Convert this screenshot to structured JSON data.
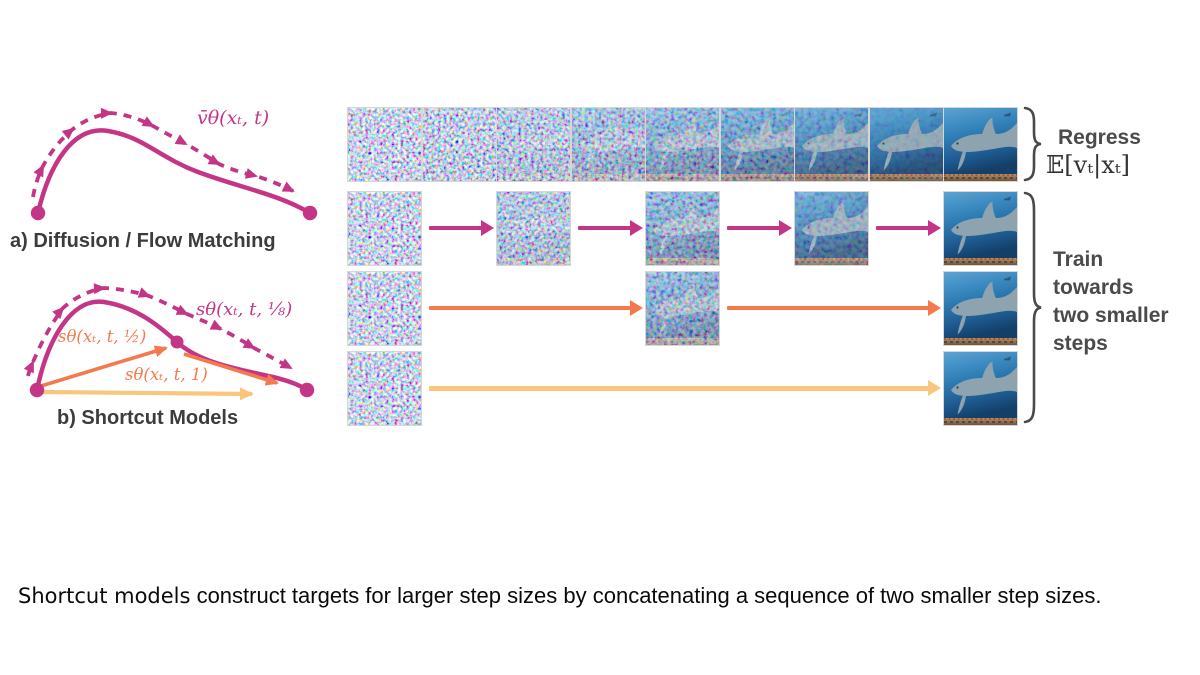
{
  "palette": {
    "magenta": "#C43586",
    "orange": "#F5794E",
    "light_orange": "#FAC57D",
    "annotation_gray": "#4a4a4a"
  },
  "diagrams": {
    "flow_matching": {
      "caption": "a) Diffusion / Flow Matching",
      "curve_label": "v̄θ(xₜ, t)"
    },
    "shortcut": {
      "caption": "b) Shortcut Models",
      "label_eighth": "sθ(xₜ, t, ⅛)",
      "label_half": "sθ(xₜ, t, ½)",
      "label_one": "sθ(xₜ, t, 1)"
    }
  },
  "annotations": {
    "regress_title": "Regress",
    "regress_math": "𝔼[vₜ|xₜ]",
    "train_text": "Train\ntowards\ntwo smaller\nsteps"
  },
  "denoise_rows": [
    {
      "name": "regression-row",
      "noise_levels": [
        1,
        0.95,
        0.88,
        0.75,
        0.6,
        0.45,
        0.28,
        0.12,
        0
      ],
      "arrow_color": null
    },
    {
      "name": "four-small-steps-row",
      "noise_levels": [
        1,
        0.85,
        0.6,
        0.3,
        0
      ],
      "arrow_color": "#C43586"
    },
    {
      "name": "two-half-steps-row",
      "noise_levels": [
        1,
        0.6,
        0
      ],
      "arrow_color": "#F5794E"
    },
    {
      "name": "one-step-row",
      "noise_levels": [
        1,
        0
      ],
      "arrow_color": "#FAC57D"
    }
  ],
  "caption": {
    "term": "Shortcut models",
    "rest": " construct targets for larger step sizes by concatenating a sequence of two smaller step sizes."
  }
}
